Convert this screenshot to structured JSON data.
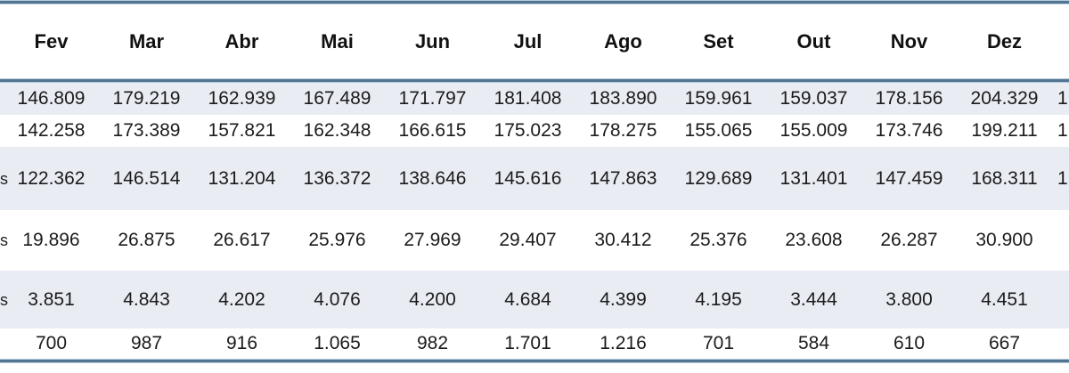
{
  "colors": {
    "accent_line": "#517592",
    "accent_line_light": "#b6cbdc",
    "band_background": "#e9ecf3",
    "text": "#1b1b1b"
  },
  "chart_data": {
    "type": "table",
    "note_visible_crop": "left row-label column and right total column are cut off at image edges",
    "columns": [
      "Fev",
      "Mar",
      "Abr",
      "Mai",
      "Jun",
      "Jul",
      "Ago",
      "Set",
      "Out",
      "Nov",
      "Dez"
    ],
    "rows": [
      {
        "left_fragment": "",
        "values": [
          "146.809",
          "179.219",
          "162.939",
          "167.489",
          "171.797",
          "181.408",
          "183.890",
          "159.961",
          "159.037",
          "178.156",
          "204.329"
        ],
        "right_fragment": "1"
      },
      {
        "left_fragment": "",
        "values": [
          "142.258",
          "173.389",
          "157.821",
          "162.348",
          "166.615",
          "175.023",
          "178.275",
          "155.065",
          "155.009",
          "173.746",
          "199.211"
        ],
        "right_fragment": "1"
      },
      {
        "left_fragment": "s",
        "values": [
          "122.362",
          "146.514",
          "131.204",
          "136.372",
          "138.646",
          "145.616",
          "147.863",
          "129.689",
          "131.401",
          "147.459",
          "168.311"
        ],
        "right_fragment": "1"
      },
      {
        "left_fragment": "s",
        "values": [
          "19.896",
          "26.875",
          "26.617",
          "25.976",
          "27.969",
          "29.407",
          "30.412",
          "25.376",
          "23.608",
          "26.287",
          "30.900"
        ],
        "right_fragment": ""
      },
      {
        "left_fragment": "s",
        "values": [
          "3.851",
          "4.843",
          "4.202",
          "4.076",
          "4.200",
          "4.684",
          "4.399",
          "4.195",
          "3.444",
          "3.800",
          "4.451"
        ],
        "right_fragment": ""
      },
      {
        "left_fragment": "",
        "values": [
          "700",
          "987",
          "916",
          "1.065",
          "982",
          "1.701",
          "1.216",
          "701",
          "584",
          "610",
          "667"
        ],
        "right_fragment": ""
      }
    ]
  }
}
